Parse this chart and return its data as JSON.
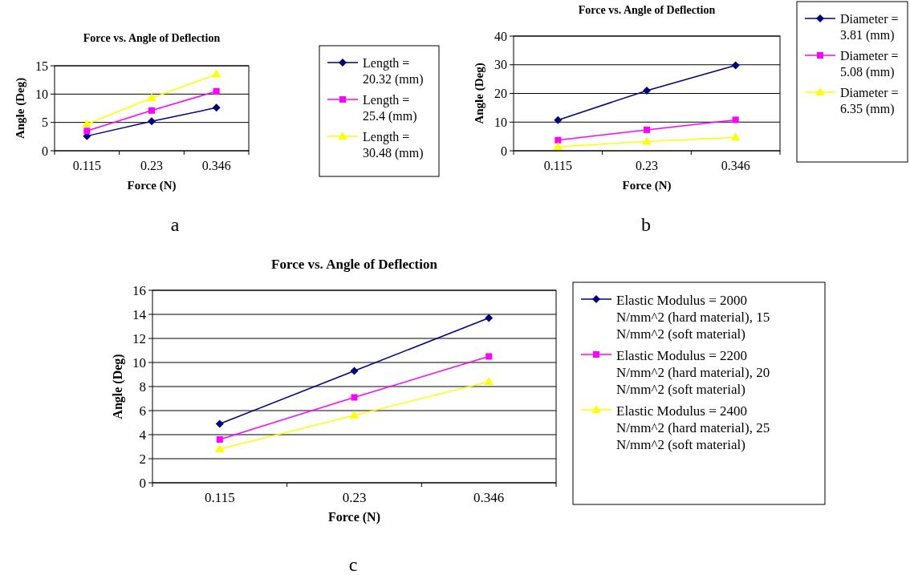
{
  "chart_data": [
    {
      "type": "line",
      "title": "Force vs. Angle of Deflection",
      "xlabel": "Force (N)",
      "ylabel": "Angle (Deg)",
      "categories": [
        "0.115",
        "0.23",
        "0.346"
      ],
      "ylim": [
        0,
        15
      ],
      "yticks": [
        0,
        5,
        10,
        15
      ],
      "grid": "y",
      "legend": "right",
      "annotations": [
        "a"
      ],
      "series": [
        {
          "name": "Length = 20.32 (mm)",
          "color": "#000080",
          "marker": "diamond",
          "values": [
            2.6,
            5.2,
            7.6
          ]
        },
        {
          "name": "Length = 25.4 (mm)",
          "color": "#ff00ff",
          "marker": "square",
          "values": [
            3.5,
            7.1,
            10.5
          ]
        },
        {
          "name": "Length = 30.48 (mm)",
          "color": "#ffff00",
          "marker": "triangle",
          "values": [
            4.7,
            9.3,
            13.5
          ]
        }
      ]
    },
    {
      "type": "line",
      "title": "Force vs. Angle of Deflection",
      "xlabel": "Force (N)",
      "ylabel": "Angle (Deg)",
      "categories": [
        "0.115",
        "0.23",
        "0.346"
      ],
      "ylim": [
        0,
        40
      ],
      "yticks": [
        0,
        10,
        20,
        30,
        40
      ],
      "grid": "y",
      "legend": "right",
      "annotations": [
        "b"
      ],
      "series": [
        {
          "name": "Diameter = 3.81 (mm)",
          "color": "#000080",
          "marker": "diamond",
          "values": [
            10.7,
            21,
            29.8
          ]
        },
        {
          "name": "Diameter = 5.08 (mm)",
          "color": "#ff00ff",
          "marker": "square",
          "values": [
            3.7,
            7.3,
            10.8
          ]
        },
        {
          "name": "Diameter = 6.35 (mm)",
          "color": "#ffff00",
          "marker": "triangle",
          "values": [
            1.4,
            3.2,
            4.7
          ]
        }
      ]
    },
    {
      "type": "line",
      "title": "Force vs. Angle of Deflection",
      "xlabel": "Force (N)",
      "ylabel": "Angle (Deg)",
      "categories": [
        "0.115",
        "0.23",
        "0.346"
      ],
      "ylim": [
        0,
        16
      ],
      "yticks": [
        0,
        2,
        4,
        6,
        8,
        10,
        12,
        14,
        16
      ],
      "grid": "y",
      "legend": "right",
      "annotations": [
        "c"
      ],
      "series": [
        {
          "name": "Elastic Modulus = 2000 N/mm^2 (hard material), 15 N/mm^2 (soft material)",
          "color": "#000080",
          "marker": "diamond",
          "values": [
            4.9,
            9.3,
            13.7
          ]
        },
        {
          "name": "Elastic Modulus = 2200 N/mm^2 (hard material), 20 N/mm^2 (soft material)",
          "color": "#ff00ff",
          "marker": "square",
          "values": [
            3.6,
            7.1,
            10.5
          ]
        },
        {
          "name": "Elastic Modulus = 2400 N/mm^2 (hard material), 25 N/mm^2 (soft material)",
          "color": "#ffff00",
          "marker": "triangle",
          "values": [
            2.8,
            5.6,
            8.4
          ]
        }
      ]
    }
  ]
}
